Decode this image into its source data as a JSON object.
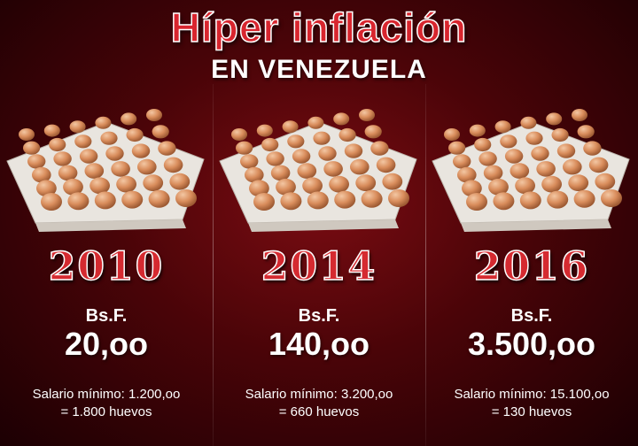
{
  "header": {
    "title": "Híper inflación",
    "subtitle": "EN VENEZUELA"
  },
  "columns": [
    {
      "year": "2010",
      "currency": "Bs.F.",
      "price": "20,oo",
      "salary_line": "Salario mínimo: 1.200,oo",
      "eggs_line": "= 1.800 huevos"
    },
    {
      "year": "2014",
      "currency": "Bs.F.",
      "price": "140,oo",
      "salary_line": "Salario mínimo: 3.200,oo",
      "eggs_line": "= 660 huevos"
    },
    {
      "year": "2016",
      "currency": "Bs.F.",
      "price": "3.500,oo",
      "salary_line": "Salario mínimo: 15.100,oo",
      "eggs_line": "= 130 huevos"
    }
  ],
  "colors": {
    "background": "#4a0408",
    "title_red": "#d8252e",
    "text": "#ffffff",
    "egg": "#d98d5c",
    "tray": "#e9e5df"
  },
  "icons": [
    "egg-tray-image"
  ]
}
